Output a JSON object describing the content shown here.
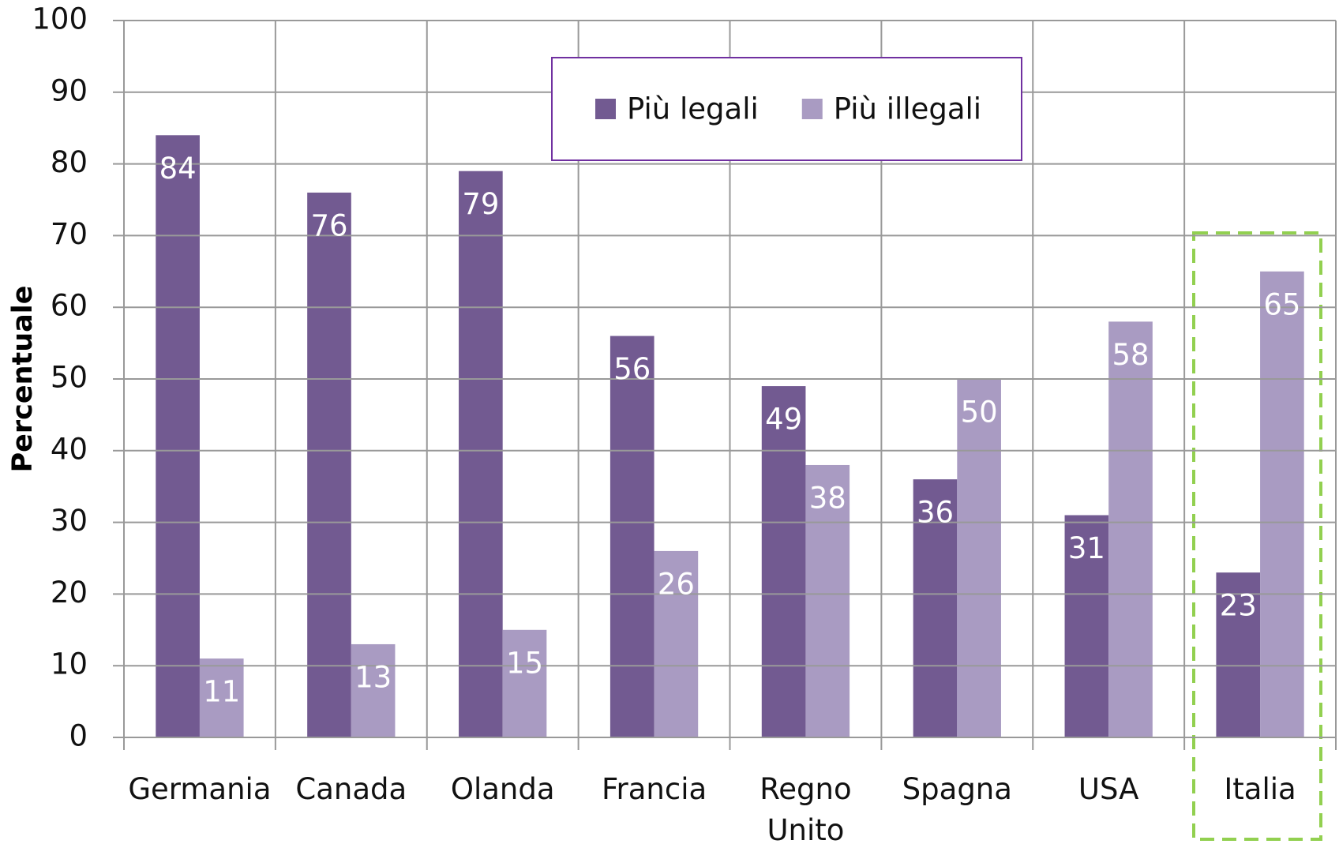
{
  "chart_data": {
    "type": "bar",
    "y_label": "Percentuale",
    "categories": [
      "Germania",
      "Canada",
      "Olanda",
      "Francia",
      "Regno Unito",
      "Spagna",
      "USA",
      "Italia"
    ],
    "series": [
      {
        "name": "Più legali",
        "color": "#725a91",
        "values": [
          84,
          76,
          79,
          56,
          49,
          36,
          31,
          23
        ]
      },
      {
        "name": "Più illegali",
        "color": "#a99bc2",
        "values": [
          11,
          13,
          15,
          26,
          38,
          50,
          58,
          65
        ]
      }
    ],
    "ylim": [
      0,
      100
    ],
    "yticks": [
      0,
      10,
      20,
      30,
      40,
      50,
      60,
      70,
      80,
      90,
      100
    ],
    "grid": true,
    "legend": "top"
  }
}
